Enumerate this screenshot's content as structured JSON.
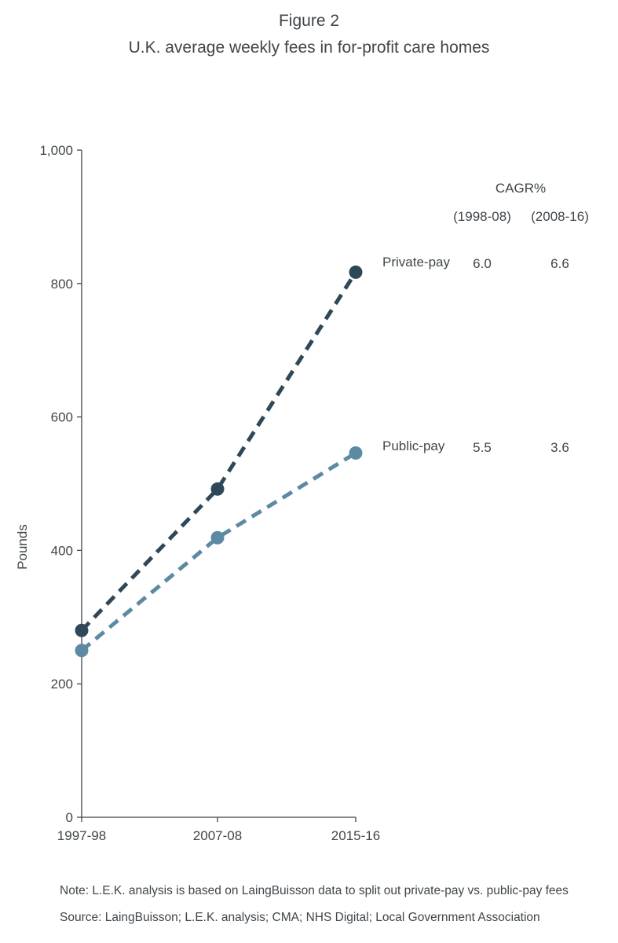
{
  "figure": {
    "number": "Figure 2",
    "title": "U.K. average weekly fees in for-profit care homes"
  },
  "chart_data": {
    "type": "line",
    "x": [
      "1997-98",
      "2007-08",
      "2015-16"
    ],
    "ylabel": "Pounds",
    "ylim": [
      0,
      1000
    ],
    "yticks": [
      0,
      200,
      400,
      600,
      800,
      1000
    ],
    "ytick_labels": [
      "0",
      "200",
      "400",
      "600",
      "800",
      "1,000"
    ],
    "grid": false,
    "line_style": "dashed",
    "series": [
      {
        "name": "Private-pay",
        "color": "#2f4858",
        "values": [
          280,
          492,
          817
        ],
        "cagr": [
          "6.0",
          "6.6"
        ]
      },
      {
        "name": "Public-pay",
        "color": "#5d8aa3",
        "values": [
          250,
          419,
          546
        ],
        "cagr": [
          "5.5",
          "3.6"
        ]
      }
    ],
    "cagr_table": {
      "title": "CAGR%",
      "periods": [
        "(1998-08)",
        "(2008-16)"
      ]
    }
  },
  "note": "Note: L.E.K. analysis is based on LaingBuisson data to split out private-pay vs. public-pay fees",
  "source": "Source: LaingBuisson; L.E.K. analysis; CMA; NHS Digital; Local Government Association"
}
